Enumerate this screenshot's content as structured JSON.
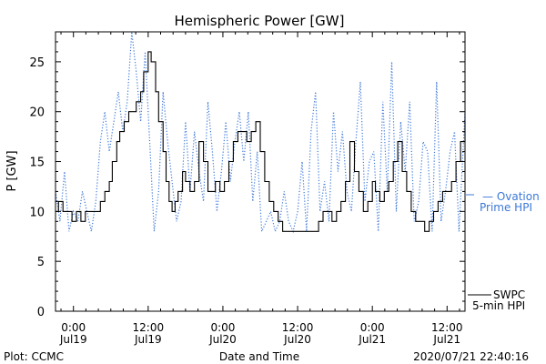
{
  "chart_data": {
    "type": "line",
    "title": "Hemispheric Power [GW]",
    "ylabel": "P [GW]",
    "xlabel": "Date and Time",
    "ylim": [
      0,
      28
    ],
    "xlim": [
      -0.12,
      2.62
    ],
    "yticks": [
      0,
      5,
      10,
      15,
      20,
      25
    ],
    "x_unit": "days since 2020-07-19 00:00",
    "xticks": [
      {
        "x": 0.0,
        "time": "0:00",
        "date": "Jul19"
      },
      {
        "x": 0.5,
        "time": "12:00",
        "date": "Jul19"
      },
      {
        "x": 1.0,
        "time": "0:00",
        "date": "Jul20"
      },
      {
        "x": 1.5,
        "time": "12:00",
        "date": "Jul20"
      },
      {
        "x": 2.0,
        "time": "0:00",
        "date": "Jul21"
      },
      {
        "x": 2.5,
        "time": "12:00",
        "date": "Jul21"
      }
    ],
    "legend": [
      "SWPC",
      "5-min HPI"
    ],
    "series": [
      {
        "name": "SWPC 5-min HPI",
        "color": "#000000",
        "style": "solid",
        "x": [
          -0.12,
          -0.1,
          -0.07,
          -0.04,
          -0.01,
          0.02,
          0.05,
          0.08,
          0.11,
          0.14,
          0.18,
          0.21,
          0.24,
          0.26,
          0.29,
          0.31,
          0.34,
          0.37,
          0.39,
          0.42,
          0.45,
          0.47,
          0.5,
          0.52,
          0.55,
          0.57,
          0.6,
          0.62,
          0.64,
          0.66,
          0.68,
          0.7,
          0.73,
          0.75,
          0.78,
          0.81,
          0.84,
          0.87,
          0.9,
          0.93,
          0.95,
          0.98,
          1.01,
          1.04,
          1.07,
          1.1,
          1.13,
          1.16,
          1.19,
          1.22,
          1.25,
          1.28,
          1.31,
          1.34,
          1.37,
          1.4,
          1.43,
          1.46,
          1.49,
          1.52,
          1.55,
          1.58,
          1.61,
          1.64,
          1.67,
          1.7,
          1.73,
          1.76,
          1.79,
          1.82,
          1.85,
          1.88,
          1.91,
          1.94,
          1.97,
          2.0,
          2.02,
          2.05,
          2.08,
          2.11,
          2.14,
          2.17,
          2.2,
          2.23,
          2.26,
          2.29,
          2.32,
          2.35,
          2.38,
          2.41,
          2.44,
          2.47,
          2.5,
          2.53,
          2.56,
          2.59,
          2.62
        ],
        "y": [
          10,
          11,
          10,
          10,
          9,
          10,
          9,
          10,
          10,
          10,
          11,
          12,
          13,
          15,
          17,
          18,
          19,
          20,
          20,
          21,
          22,
          24,
          26,
          25,
          22,
          19,
          16,
          13,
          11,
          10,
          11,
          12,
          14,
          13,
          12,
          13,
          17,
          15,
          12,
          12,
          13,
          12,
          13,
          15,
          17,
          18,
          18,
          17,
          18,
          19,
          16,
          13,
          11,
          10,
          9,
          8,
          8,
          8,
          8,
          8,
          8,
          8,
          8,
          9,
          10,
          10,
          9,
          10,
          11,
          13,
          17,
          14,
          12,
          10,
          11,
          13,
          12,
          11,
          12,
          13,
          15,
          17,
          14,
          12,
          10,
          9,
          9,
          8,
          9,
          10,
          11,
          12,
          12,
          13,
          15,
          17,
          19
        ]
      },
      {
        "name": "Ovation Prime HPI",
        "color": "#3c78d8",
        "style": "dotted",
        "x": [
          -0.12,
          -0.09,
          -0.06,
          -0.03,
          0.0,
          0.03,
          0.06,
          0.09,
          0.12,
          0.15,
          0.18,
          0.21,
          0.24,
          0.27,
          0.3,
          0.33,
          0.36,
          0.39,
          0.42,
          0.45,
          0.48,
          0.51,
          0.54,
          0.57,
          0.6,
          0.63,
          0.66,
          0.69,
          0.72,
          0.75,
          0.78,
          0.81,
          0.84,
          0.87,
          0.9,
          0.93,
          0.96,
          0.99,
          1.02,
          1.05,
          1.08,
          1.11,
          1.14,
          1.17,
          1.2,
          1.23,
          1.26,
          1.29,
          1.32,
          1.35,
          1.38,
          1.41,
          1.44,
          1.47,
          1.5,
          1.53,
          1.56,
          1.59,
          1.62,
          1.65,
          1.68,
          1.71,
          1.74,
          1.77,
          1.8,
          1.83,
          1.86,
          1.89,
          1.92,
          1.95,
          1.98,
          2.01,
          2.04,
          2.07,
          2.1,
          2.13,
          2.16,
          2.19,
          2.22,
          2.25,
          2.28,
          2.31,
          2.34,
          2.37,
          2.4,
          2.43,
          2.46,
          2.49,
          2.52,
          2.55,
          2.58,
          2.62
        ],
        "y": [
          12,
          9,
          14,
          8,
          10,
          9,
          12,
          10,
          8,
          11,
          17,
          20,
          16,
          19,
          22,
          18,
          21,
          28,
          24,
          19,
          26,
          17,
          8,
          12,
          22,
          17,
          13,
          9,
          11,
          19,
          12,
          18,
          14,
          11,
          21,
          16,
          10,
          14,
          19,
          13,
          17,
          20,
          15,
          20,
          11,
          16,
          8,
          9,
          10,
          8,
          9,
          12,
          9,
          8,
          10,
          15,
          8,
          18,
          22,
          10,
          13,
          9,
          20,
          14,
          18,
          12,
          10,
          17,
          23,
          11,
          15,
          16,
          8,
          21,
          12,
          25,
          10,
          19,
          14,
          21,
          9,
          11,
          17,
          16,
          8,
          23,
          9,
          12,
          16,
          18,
          8,
          20
        ]
      }
    ]
  },
  "side_legend": {
    "ovation_line1": "— Ovation",
    "ovation_line2": "Prime HPI",
    "swpc_line1": "SWPC",
    "swpc_line2": "5-min HPI"
  },
  "footer": {
    "plot_credit": "Plot: CCMC",
    "timestamp": "2020/07/21 22:40:16"
  }
}
